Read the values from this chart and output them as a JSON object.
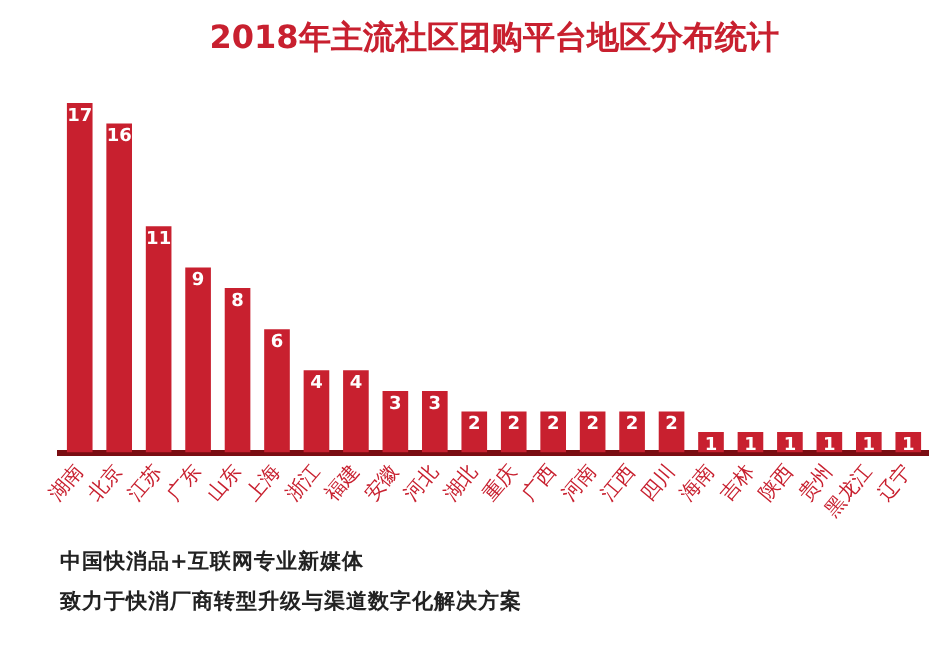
{
  "chart_data": {
    "type": "bar",
    "title": "2018年主流社区团购平台地区分布统计",
    "categories": [
      "湖南",
      "北京",
      "江苏",
      "广东",
      "山东",
      "上海",
      "浙江",
      "福建",
      "安徽",
      "河北",
      "湖北",
      "重庆",
      "广西",
      "河南",
      "江西",
      "四川",
      "海南",
      "吉林",
      "陕西",
      "贵州",
      "黑龙江",
      "辽宁"
    ],
    "values": [
      17,
      16,
      11,
      9,
      8,
      6,
      4,
      4,
      3,
      3,
      2,
      2,
      2,
      2,
      2,
      2,
      1,
      1,
      1,
      1,
      1,
      1
    ],
    "color": "#c8202f",
    "data_labels": true,
    "grid": false,
    "legend": false,
    "tick_labels": "x",
    "annotations": [
      "中国快消品+互联网专业新媒体",
      "致力于快消厂商转型升级与渠道数字化解决方案"
    ]
  }
}
